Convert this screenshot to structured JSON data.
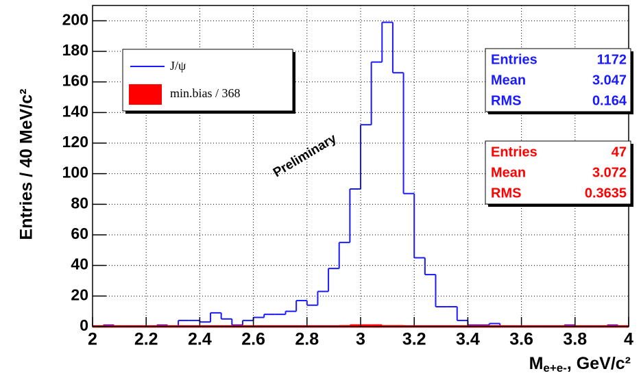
{
  "chart_data": {
    "type": "histogram",
    "ylabel": "Entries / 40 MeV/c²",
    "xlabel": {
      "main": "M",
      "sub": "e+e-",
      "rest": ", GeV/c²"
    },
    "annotation": "Preliminary",
    "xlim": [
      2,
      4
    ],
    "ylim": [
      0,
      210
    ],
    "xticks": [
      2,
      2.2,
      2.4,
      2.6,
      2.8,
      3,
      3.2,
      3.4,
      3.6,
      3.8,
      4
    ],
    "yticks": [
      0,
      20,
      40,
      60,
      80,
      100,
      120,
      140,
      160,
      180,
      200
    ],
    "grid": true,
    "legend": "top-left",
    "bins": [
      2,
      2.04,
      2.08,
      2.12,
      2.16,
      2.2,
      2.24,
      2.28,
      2.32,
      2.36,
      2.4,
      2.44,
      2.48,
      2.52,
      2.56,
      2.6,
      2.64,
      2.68,
      2.72,
      2.76,
      2.8,
      2.84,
      2.88,
      2.92,
      2.96,
      3,
      3.04,
      3.08,
      3.12,
      3.16,
      3.2,
      3.24,
      3.28,
      3.32,
      3.36,
      3.4,
      3.44,
      3.48,
      3.52,
      3.56,
      3.6,
      3.64,
      3.68,
      3.72,
      3.76,
      3.8,
      3.84,
      3.88,
      3.92,
      3.96,
      4
    ],
    "series": [
      {
        "name": "J/ψ",
        "color": "#1a1aff",
        "style": "step",
        "values": [
          0,
          1,
          0,
          0,
          0,
          0,
          1,
          0,
          4,
          4,
          3,
          9,
          5,
          1,
          4,
          6,
          8,
          8,
          10,
          17,
          14,
          23,
          38,
          55,
          90,
          132,
          173,
          199,
          166,
          87,
          45,
          34,
          13,
          13,
          4,
          1,
          1,
          2,
          0,
          0,
          0,
          0,
          0,
          0,
          1,
          0,
          0,
          0,
          1,
          0
        ]
      },
      {
        "name": "min.bias / 368",
        "color": "#ff0000",
        "style": "filled",
        "values": [
          0,
          0.5,
          0,
          0,
          0.5,
          0,
          0,
          0,
          0.5,
          0,
          0,
          0,
          0,
          0,
          0,
          0,
          0.5,
          0,
          0,
          0,
          0.5,
          0,
          0.5,
          1,
          1.5,
          1.5,
          1.5,
          1,
          1,
          0.5,
          0.5,
          0.5,
          0,
          0,
          0,
          0,
          0,
          0,
          0,
          0,
          0,
          0,
          0.5,
          0,
          0,
          0,
          0,
          0,
          0.5,
          0
        ]
      }
    ],
    "stats": [
      {
        "color": "#1a1aff",
        "rows": [
          {
            "label": "Entries",
            "value": 1172
          },
          {
            "label": "Mean",
            "value": 3.047
          },
          {
            "label": "RMS",
            "value": 0.164
          }
        ]
      },
      {
        "color": "#ff0000",
        "rows": [
          {
            "label": "Entries",
            "value": 47
          },
          {
            "label": "Mean",
            "value": 3.072
          },
          {
            "label": "RMS",
            "value": 0.3635
          }
        ]
      }
    ]
  }
}
